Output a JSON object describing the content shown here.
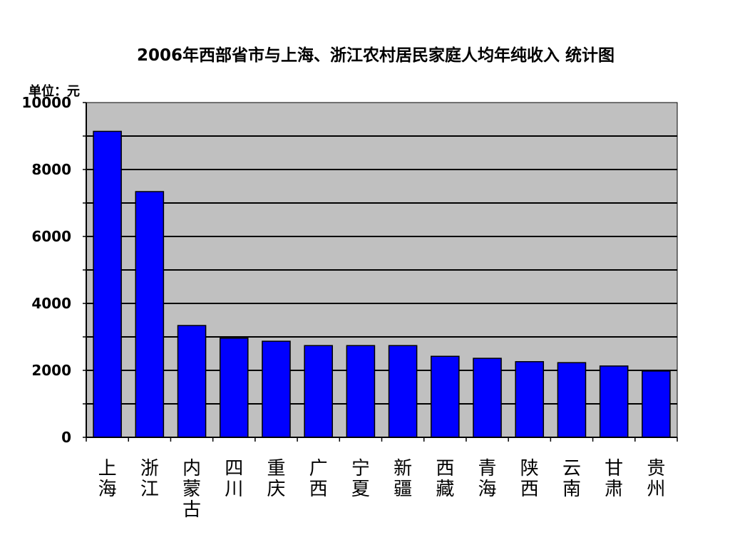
{
  "chart_data": {
    "type": "bar",
    "title": "2006年西部省市与上海、浙江农村居民家庭人均年纯收入 统计图",
    "unit_label": "单位：元",
    "xlabel": "",
    "ylabel": "",
    "ylim": [
      0,
      10000
    ],
    "yticks": [
      "0",
      "2000",
      "4000",
      "6000",
      "8000",
      "10000"
    ],
    "grid_step": 1000,
    "grid": true,
    "legend": "none",
    "bar_color": "#0000ff",
    "plot_background": "#c0c0c0",
    "categories": [
      "上海",
      "浙江",
      "内蒙古",
      "四川",
      "重庆",
      "广西",
      "宁夏",
      "新疆",
      "西藏",
      "青海",
      "陕西",
      "云南",
      "甘肃",
      "贵州"
    ],
    "values": [
      9140,
      7340,
      3340,
      2960,
      2870,
      2740,
      2740,
      2740,
      2420,
      2360,
      2260,
      2230,
      2130,
      1980
    ]
  }
}
